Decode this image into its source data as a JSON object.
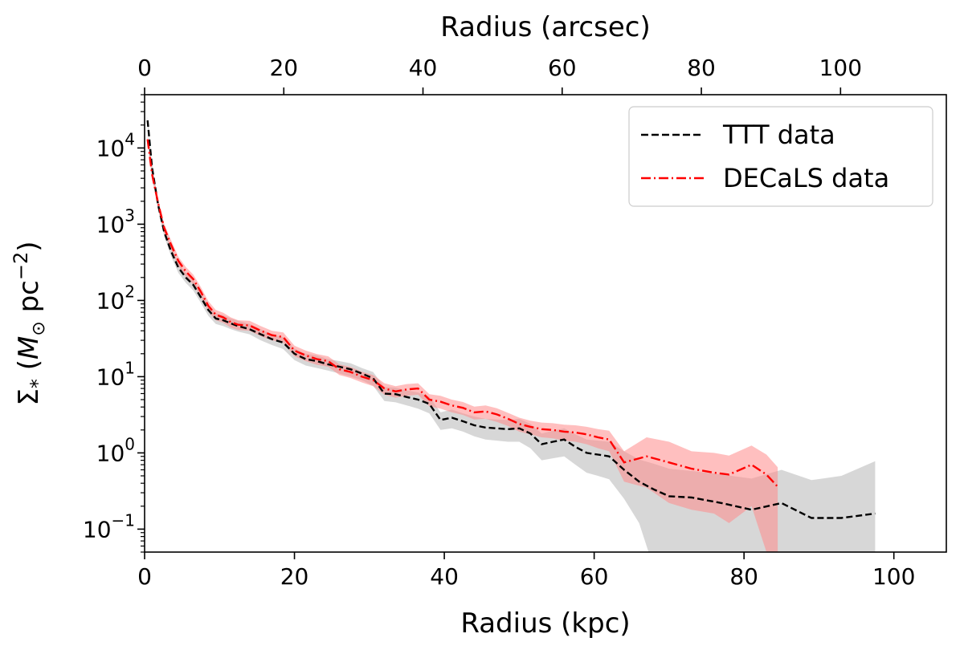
{
  "chart_data": {
    "type": "line",
    "xlabel": "Radius (kpc)",
    "x2label": "Radius (arcsec)",
    "ylabel_parts": {
      "sigma": "Σ",
      "sub": "*",
      "open": " (",
      "m": "M",
      "msub": "⊙",
      "pc": " pc",
      "exp": "−2",
      "close": ")"
    },
    "xlim": [
      0,
      107
    ],
    "ylim": [
      0.05,
      50000
    ],
    "yscale": "log",
    "x2lim": [
      0,
      115.2
    ],
    "xticks": [
      0,
      20,
      40,
      60,
      80,
      100
    ],
    "xtick_labels": [
      "0",
      "20",
      "40",
      "60",
      "80",
      "100"
    ],
    "x2ticks": [
      0,
      20,
      40,
      60,
      80,
      100
    ],
    "x2tick_labels": [
      "0",
      "20",
      "40",
      "60",
      "80",
      "100"
    ],
    "yticks": [
      0.1,
      1,
      10,
      100,
      1000,
      10000
    ],
    "ytick_labels": [
      {
        "base": "10",
        "exp": "−1"
      },
      {
        "base": "10",
        "exp": "0"
      },
      {
        "base": "10",
        "exp": "1"
      },
      {
        "base": "10",
        "exp": "2"
      },
      {
        "base": "10",
        "exp": "3"
      },
      {
        "base": "10",
        "exp": "4"
      }
    ],
    "legend_position": "top-right",
    "series": [
      {
        "name": "TTT data",
        "color": "#000000",
        "line_style": "dashed",
        "band_color": "#bdbdbd",
        "x": [
          0.4,
          1.0,
          1.8,
          2.6,
          3.5,
          4.5,
          5.5,
          6.5,
          7.5,
          8.5,
          9.5,
          10.5,
          11.5,
          12.5,
          14,
          15.5,
          17,
          18.5,
          20,
          21.5,
          23,
          24.5,
          26,
          27.5,
          29,
          30.5,
          32,
          33.5,
          35,
          36.5,
          38,
          39.5,
          41,
          42.5,
          44,
          45.5,
          47,
          48.5,
          50,
          51.5,
          53,
          54.5,
          56,
          57.5,
          59,
          60.5,
          62,
          64,
          66,
          68,
          70,
          73,
          77,
          81,
          85,
          89,
          93,
          97.5
        ],
        "y": [
          23000,
          5500,
          1800,
          800,
          450,
          270,
          200,
          160,
          110,
          75,
          58,
          55,
          50,
          46,
          42,
          36,
          31,
          28,
          20,
          17,
          16,
          14.5,
          13.5,
          12.5,
          11,
          9.5,
          6,
          5.9,
          5.4,
          5.0,
          4.4,
          2.7,
          2.9,
          2.6,
          2.3,
          2.15,
          2.1,
          2.05,
          2.1,
          1.8,
          1.3,
          1.4,
          1.5,
          1.2,
          1.0,
          0.95,
          0.9,
          0.6,
          0.42,
          0.33,
          0.27,
          0.26,
          0.22,
          0.18,
          0.22,
          0.14,
          0.14,
          0.16
        ],
        "y_low": [
          20000,
          4700,
          1550,
          700,
          390,
          230,
          170,
          135,
          93,
          63,
          49,
          46,
          42,
          39,
          36,
          30,
          26,
          23,
          16.5,
          14,
          13,
          12,
          11,
          10,
          9,
          7.6,
          4.8,
          4.6,
          4.2,
          3.8,
          3.3,
          2.0,
          2.1,
          1.9,
          1.65,
          1.5,
          1.45,
          1.4,
          1.4,
          1.15,
          0.8,
          0.85,
          0.9,
          0.7,
          0.55,
          0.5,
          0.45,
          0.25,
          0.12,
          0.03,
          0.01,
          0.01,
          0.01,
          0.01,
          0.01,
          0.01,
          0.01,
          0.01
        ],
        "y_high": [
          26000,
          6300,
          2050,
          910,
          515,
          310,
          230,
          185,
          128,
          88,
          68,
          64,
          58,
          54,
          49,
          42,
          36,
          33,
          23.5,
          20,
          19,
          17,
          16,
          15,
          13,
          11.5,
          7.3,
          7.2,
          6.6,
          6.2,
          5.5,
          3.4,
          3.7,
          3.3,
          3.0,
          2.8,
          2.75,
          2.7,
          2.8,
          2.4,
          1.8,
          1.95,
          2.1,
          1.75,
          1.5,
          1.45,
          1.4,
          1.05,
          0.82,
          0.72,
          0.62,
          0.58,
          0.52,
          0.46,
          0.6,
          0.44,
          0.5,
          0.78
        ]
      },
      {
        "name": "DECaLS data",
        "color": "#ff0000",
        "line_style": "dashdot",
        "band_color": "#ff8a8a",
        "x": [
          0.4,
          1.0,
          1.8,
          2.6,
          3.5,
          4.5,
          5.5,
          6.5,
          7.5,
          8.5,
          9.5,
          10.5,
          11.5,
          12.5,
          14,
          15.5,
          17,
          18.5,
          20,
          21.5,
          23,
          24.5,
          26,
          27.5,
          29,
          30.5,
          32,
          33.5,
          35,
          36.5,
          38,
          39.5,
          41,
          42.5,
          44,
          45.5,
          47,
          48.5,
          50,
          51.5,
          53,
          54.5,
          56,
          57.5,
          59,
          60.5,
          62,
          64,
          67,
          70,
          73,
          76,
          78,
          81,
          83,
          84.5
        ],
        "y": [
          13000,
          4500,
          1900,
          900,
          550,
          330,
          240,
          190,
          130,
          85,
          65,
          60,
          52,
          48,
          47,
          40,
          35,
          33,
          22,
          19,
          17,
          16,
          12.5,
          11.5,
          10,
          9,
          7.0,
          6.4,
          6.8,
          7.0,
          5.0,
          4.7,
          4.2,
          3.9,
          3.4,
          3.5,
          3.2,
          2.8,
          2.4,
          2.2,
          2.05,
          2.0,
          1.9,
          1.85,
          1.75,
          1.6,
          1.5,
          0.75,
          0.9,
          0.75,
          0.62,
          0.55,
          0.52,
          0.7,
          0.52,
          0.36
        ],
        "y_low": [
          11500,
          3900,
          1650,
          780,
          470,
          285,
          205,
          162,
          110,
          72,
          55,
          51,
          44,
          41,
          40,
          34,
          30,
          28,
          18.5,
          16,
          14.3,
          13.5,
          10.5,
          9.6,
          8.4,
          7.5,
          5.8,
          5.3,
          5.6,
          5.8,
          4.1,
          3.8,
          3.4,
          3.15,
          2.75,
          2.8,
          2.55,
          2.25,
          1.9,
          1.75,
          1.6,
          1.55,
          1.45,
          1.4,
          1.3,
          1.15,
          1.05,
          0.42,
          0.35,
          0.22,
          0.18,
          0.16,
          0.12,
          0.2,
          0.05,
          0.02
        ],
        "y_high": [
          14500,
          5100,
          2150,
          1020,
          630,
          375,
          275,
          218,
          150,
          98,
          75,
          69,
          60,
          55,
          54,
          46,
          40,
          38,
          25.5,
          22,
          19.8,
          18.5,
          14.5,
          13.4,
          11.6,
          10.5,
          8.2,
          7.5,
          8.0,
          8.2,
          5.9,
          5.6,
          5.0,
          4.65,
          4.05,
          4.2,
          3.85,
          3.35,
          2.9,
          2.65,
          2.5,
          2.45,
          2.35,
          2.3,
          2.2,
          2.05,
          1.95,
          1.05,
          1.6,
          1.4,
          1.05,
          1.0,
          0.92,
          1.25,
          0.95,
          0.65
        ]
      }
    ]
  }
}
